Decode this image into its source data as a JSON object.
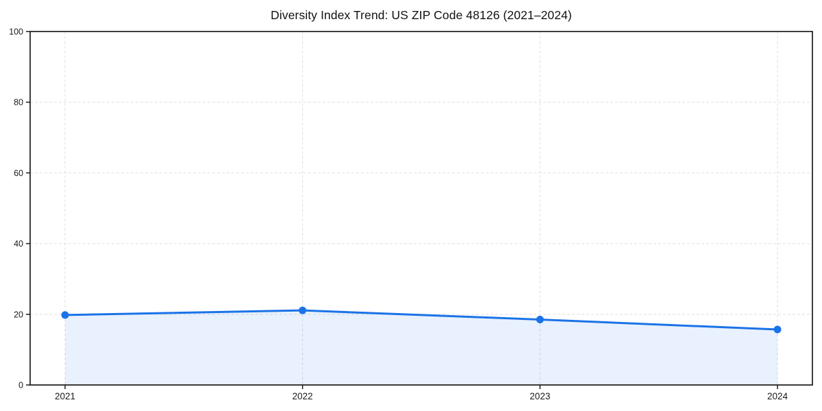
{
  "chart_data": {
    "type": "area",
    "title": "Diversity Index Trend: US ZIP Code 48126 (2021–2024)",
    "categories": [
      "2021",
      "2022",
      "2023",
      "2024"
    ],
    "series": [
      {
        "name": "Diversity Index",
        "values": [
          19.8,
          21.1,
          18.5,
          15.7
        ]
      }
    ],
    "xlabel": "",
    "ylabel": "",
    "ylim": [
      0,
      100
    ],
    "yticks": [
      0,
      20,
      40,
      60,
      80,
      100
    ],
    "grid": true,
    "grid_style": "dashed",
    "legend_position": "none",
    "marker": "circle",
    "colors": {
      "line": "#1a73e8",
      "marker": "#1a73e8",
      "fill": "rgba(26,115,232,0.10)",
      "grid": "#e2e2e2",
      "axis": "#1a1a1a",
      "tick_text": "#1a1a1a",
      "title_text": "#111111",
      "background": "#ffffff"
    }
  }
}
